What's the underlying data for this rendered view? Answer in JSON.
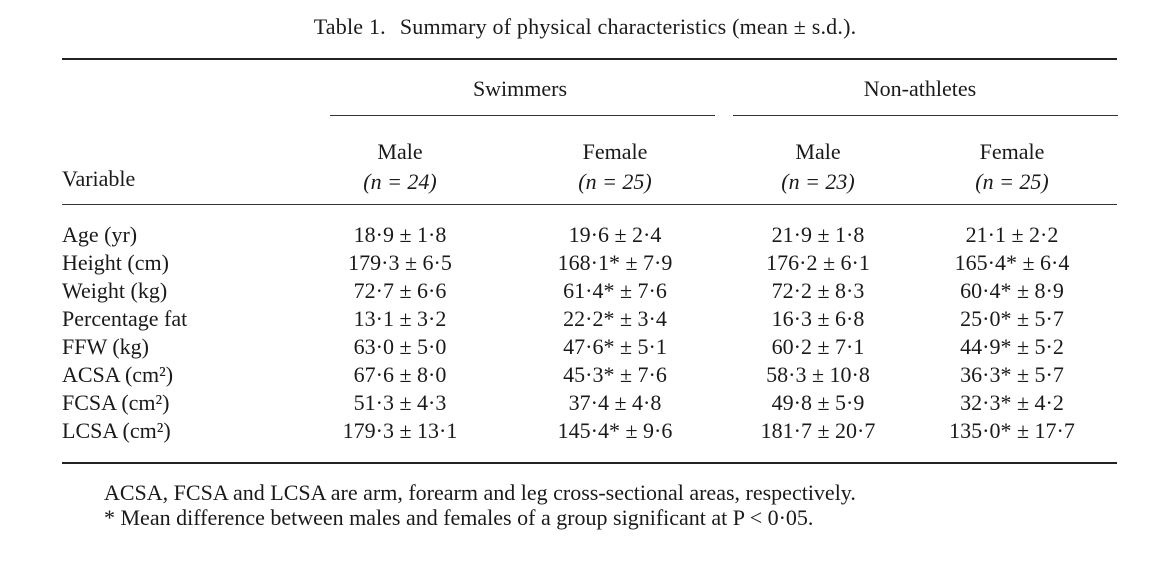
{
  "caption": {
    "number": "Table 1.",
    "title": "Summary of physical characteristics (mean ± s.d.)."
  },
  "groups": [
    "Swimmers",
    "Non-athletes"
  ],
  "columns": [
    {
      "sex": "Male",
      "n": "(n = 24)"
    },
    {
      "sex": "Female",
      "n": "(n = 25)"
    },
    {
      "sex": "Male",
      "n": "(n = 23)"
    },
    {
      "sex": "Female",
      "n": "(n = 25)"
    }
  ],
  "variable_header": "Variable",
  "rows": [
    {
      "label": "Age (yr)",
      "values": [
        "18·9 ± 1·8",
        "19·6 ± 2·4",
        "21·9 ± 1·8",
        "21·1 ± 2·2"
      ]
    },
    {
      "label": "Height (cm)",
      "values": [
        "179·3 ± 6·5",
        "168·1* ± 7·9",
        "176·2 ± 6·1",
        "165·4* ± 6·4"
      ]
    },
    {
      "label": "Weight (kg)",
      "values": [
        "72·7 ± 6·6",
        "61·4* ± 7·6",
        "72·2 ± 8·3",
        "60·4* ± 8·9"
      ]
    },
    {
      "label": "Percentage fat",
      "values": [
        "13·1 ± 3·2",
        "22·2* ± 3·4",
        "16·3 ± 6·8",
        "25·0* ± 5·7"
      ]
    },
    {
      "label": "FFW (kg)",
      "values": [
        "63·0 ± 5·0",
        "47·6* ± 5·1",
        "60·2 ± 7·1",
        "44·9* ± 5·2"
      ]
    },
    {
      "label": "ACSA (cm²)",
      "values": [
        "67·6 ± 8·0",
        "45·3* ± 7·6",
        "58·3 ± 10·8",
        "36·3* ± 5·7"
      ]
    },
    {
      "label": "FCSA (cm²)",
      "values": [
        "51·3 ± 4·3",
        "37·4 ± 4·8",
        "49·8 ± 5·9",
        "32·3* ± 4·2"
      ]
    },
    {
      "label": "LCSA (cm²)",
      "values": [
        "179·3 ± 13·1",
        "145·4* ± 9·6",
        "181·7 ± 20·7",
        "135·0* ± 17·7"
      ]
    }
  ],
  "notes": {
    "line1": "ACSA, FCSA and LCSA are arm, forearm and leg cross-sectional areas, respectively.",
    "line2": "* Mean difference between males and females of a group significant at P < 0·05."
  }
}
